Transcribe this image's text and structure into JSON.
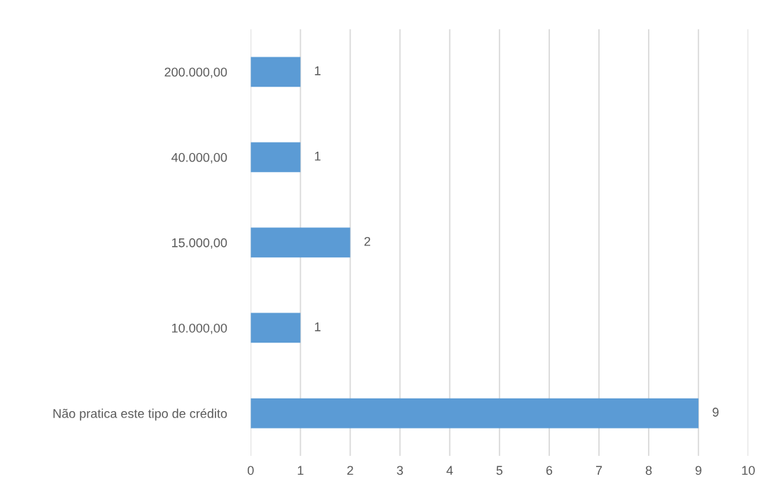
{
  "chart_data": {
    "type": "bar",
    "orientation": "horizontal",
    "categories": [
      "200.000,00",
      "40.000,00",
      "15.000,00",
      "10.000,00",
      "Não pratica este tipo de crédito"
    ],
    "values": [
      1,
      1,
      2,
      1,
      9
    ],
    "color": "#5b9bd5",
    "xlim": [
      0,
      10
    ],
    "xticks": [
      0,
      1,
      2,
      3,
      4,
      5,
      6,
      7,
      8,
      9,
      10
    ],
    "grid": "x",
    "data_labels": true
  }
}
